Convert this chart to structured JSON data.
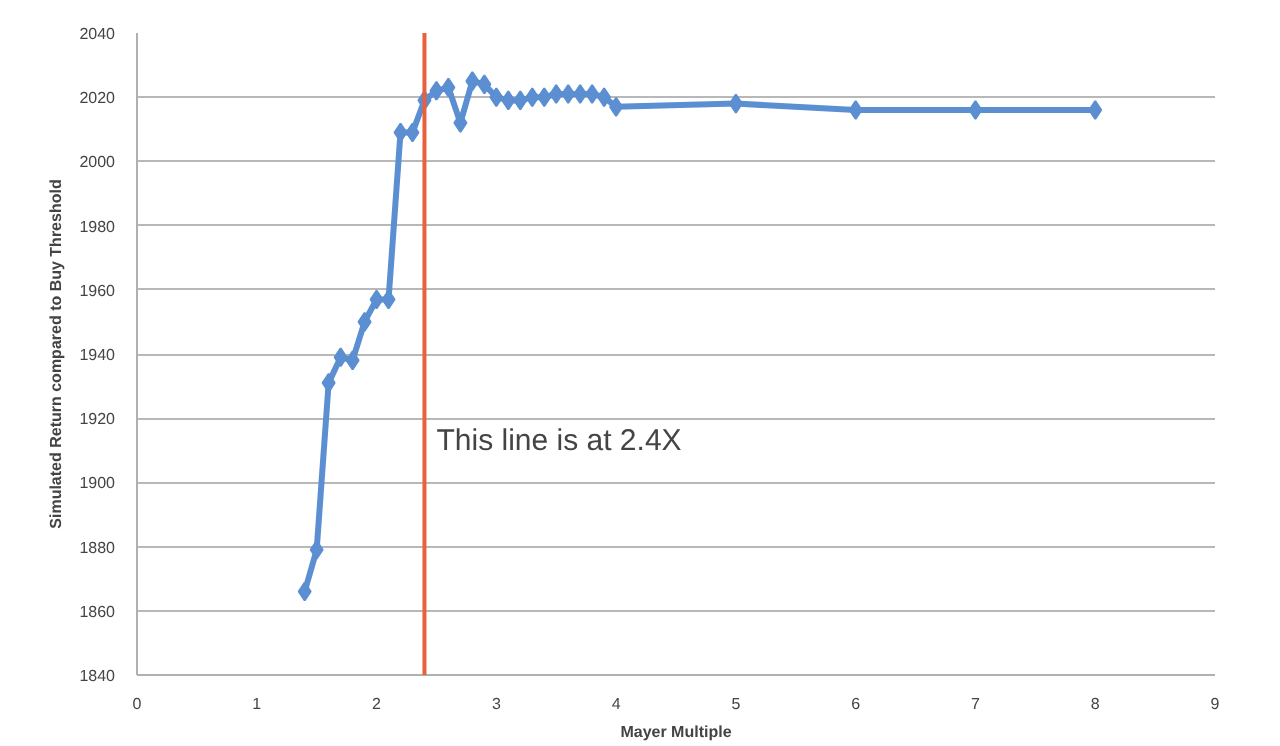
{
  "chart_data": {
    "type": "line",
    "xlabel": "Mayer Multiple",
    "ylabel": "Simulated Return compared to Buy Threshold",
    "xlim": [
      0,
      9
    ],
    "xticks": [
      0,
      1,
      2,
      3,
      4,
      5,
      6,
      7,
      8,
      9
    ],
    "ylim": [
      1840,
      2040
    ],
    "yticks": [
      1840,
      1860,
      1880,
      1900,
      1920,
      1940,
      1960,
      1980,
      2000,
      2020,
      2040
    ],
    "grid": "y",
    "marker": "diamond",
    "line_style": "solid",
    "series": [
      {
        "color": "#5b8fd1",
        "x": [
          1.4,
          1.5,
          1.6,
          1.7,
          1.8,
          1.9,
          2.0,
          2.1,
          2.2,
          2.3,
          2.4,
          2.5,
          2.6,
          2.7,
          2.8,
          2.9,
          3.0,
          3.1,
          3.2,
          3.3,
          3.4,
          3.5,
          3.6,
          3.7,
          3.8,
          3.9,
          4.0,
          5,
          6,
          7,
          8
        ],
        "values": [
          1866,
          1879,
          1931,
          1939,
          1938,
          1950,
          1957,
          1957,
          2009,
          2009,
          2019,
          2022,
          2023,
          2012,
          2025,
          2024,
          2020,
          2019,
          2019,
          2020,
          2020,
          2021,
          2021,
          2021,
          2021,
          2020,
          2017,
          2018,
          2016,
          2016,
          2016
        ]
      }
    ],
    "ref_lines": [
      {
        "axis": "x",
        "value": 2.4,
        "label": "This line is at 2.4X",
        "color": "#e8613a"
      }
    ]
  }
}
